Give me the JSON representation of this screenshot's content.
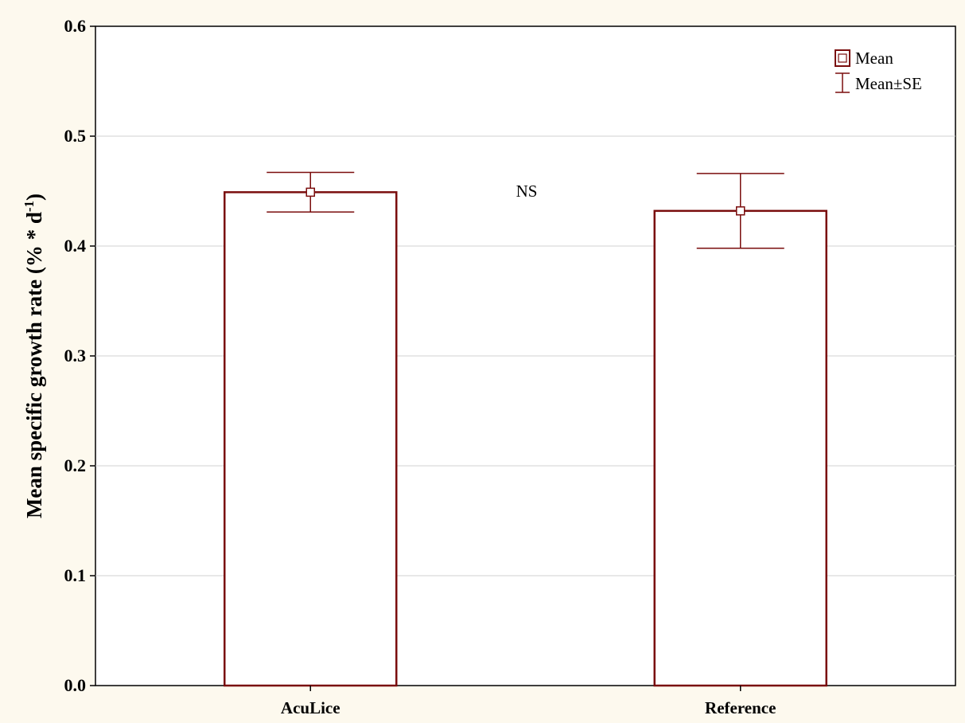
{
  "chart_data": {
    "type": "bar",
    "categories": [
      "AcuLice",
      "Reference"
    ],
    "values": [
      0.449,
      0.432
    ],
    "se_upper": [
      0.467,
      0.466
    ],
    "se_lower": [
      0.431,
      0.398
    ],
    "ylabel_main": "Mean specific growth rate (% * d",
    "ylabel_sup": "-1",
    "ylabel_end": ")",
    "ylim": [
      0,
      0.6
    ],
    "yticks": [
      "0.0",
      "0.1",
      "0.2",
      "0.3",
      "0.4",
      "0.5",
      "0.6"
    ],
    "ytick_values": [
      0,
      0.1,
      0.2,
      0.3,
      0.4,
      0.5,
      0.6
    ],
    "grid": true,
    "annotation": "NS",
    "legend": {
      "placement": "top-right",
      "mean_label": "Mean",
      "se_label": "Mean±SE"
    },
    "colors": {
      "series": "#7a0d0d",
      "grid": "#d0d0d0",
      "background": "#fdf9ee",
      "plot": "#ffffff"
    }
  }
}
